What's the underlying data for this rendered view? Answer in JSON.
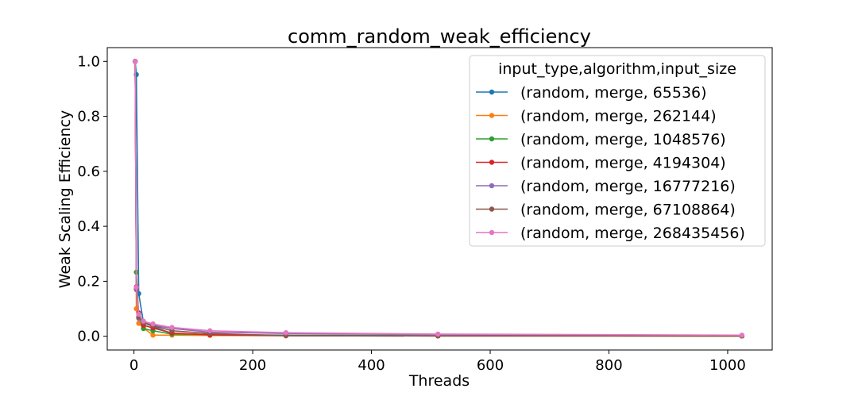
{
  "chart_data": {
    "type": "line",
    "title": "comm_random_weak_efficiency",
    "xlabel": "Threads",
    "ylabel": "Weak Scaling Efficiency",
    "xlim": [
      -45,
      1075
    ],
    "ylim": [
      -0.05,
      1.05
    ],
    "xticks": [
      0,
      200,
      400,
      600,
      800,
      1000
    ],
    "yticks": [
      0.0,
      0.2,
      0.4,
      0.6,
      0.8,
      1.0
    ],
    "grid": false,
    "legend": {
      "title": "input_type,algorithm,input_size",
      "placement": "top-right"
    },
    "x": [
      2,
      4,
      8,
      16,
      32,
      64,
      128,
      256,
      512,
      1024
    ],
    "series": [
      {
        "name": "(random, merge, 65536)",
        "color": "#1f77b4",
        "values": [
          1.0,
          0.952,
          0.155,
          0.05,
          0.035,
          0.01,
          0.006,
          0.004,
          0.002,
          0.001
        ]
      },
      {
        "name": "(random, merge, 262144)",
        "color": "#ff7f0e",
        "values": [
          1.0,
          0.1,
          0.047,
          0.03,
          0.004,
          0.004,
          0.003,
          0.002,
          0.002,
          0.001
        ]
      },
      {
        "name": "(random, merge, 1048576)",
        "color": "#2ca02c",
        "values": [
          1.0,
          0.233,
          0.07,
          0.028,
          0.02,
          0.008,
          0.006,
          0.003,
          0.002,
          0.001
        ]
      },
      {
        "name": "(random, merge, 4194304)",
        "color": "#d62728",
        "values": [
          1.0,
          0.18,
          0.085,
          0.04,
          0.03,
          0.012,
          0.005,
          0.002,
          0.001,
          0.001
        ]
      },
      {
        "name": "(random, merge, 16777216)",
        "color": "#9467bd",
        "values": [
          1.0,
          0.17,
          0.065,
          0.05,
          0.04,
          0.028,
          0.015,
          0.01,
          0.006,
          0.002
        ]
      },
      {
        "name": "(random, merge, 67108864)",
        "color": "#8c564b",
        "values": [
          1.0,
          0.175,
          0.07,
          0.05,
          0.038,
          0.02,
          0.01,
          0.002,
          0.001,
          0.001
        ]
      },
      {
        "name": "(random, merge, 268435456)",
        "color": "#e377c2",
        "values": [
          1.0,
          0.178,
          0.08,
          0.055,
          0.045,
          0.032,
          0.02,
          0.013,
          0.008,
          0.004
        ]
      }
    ]
  }
}
